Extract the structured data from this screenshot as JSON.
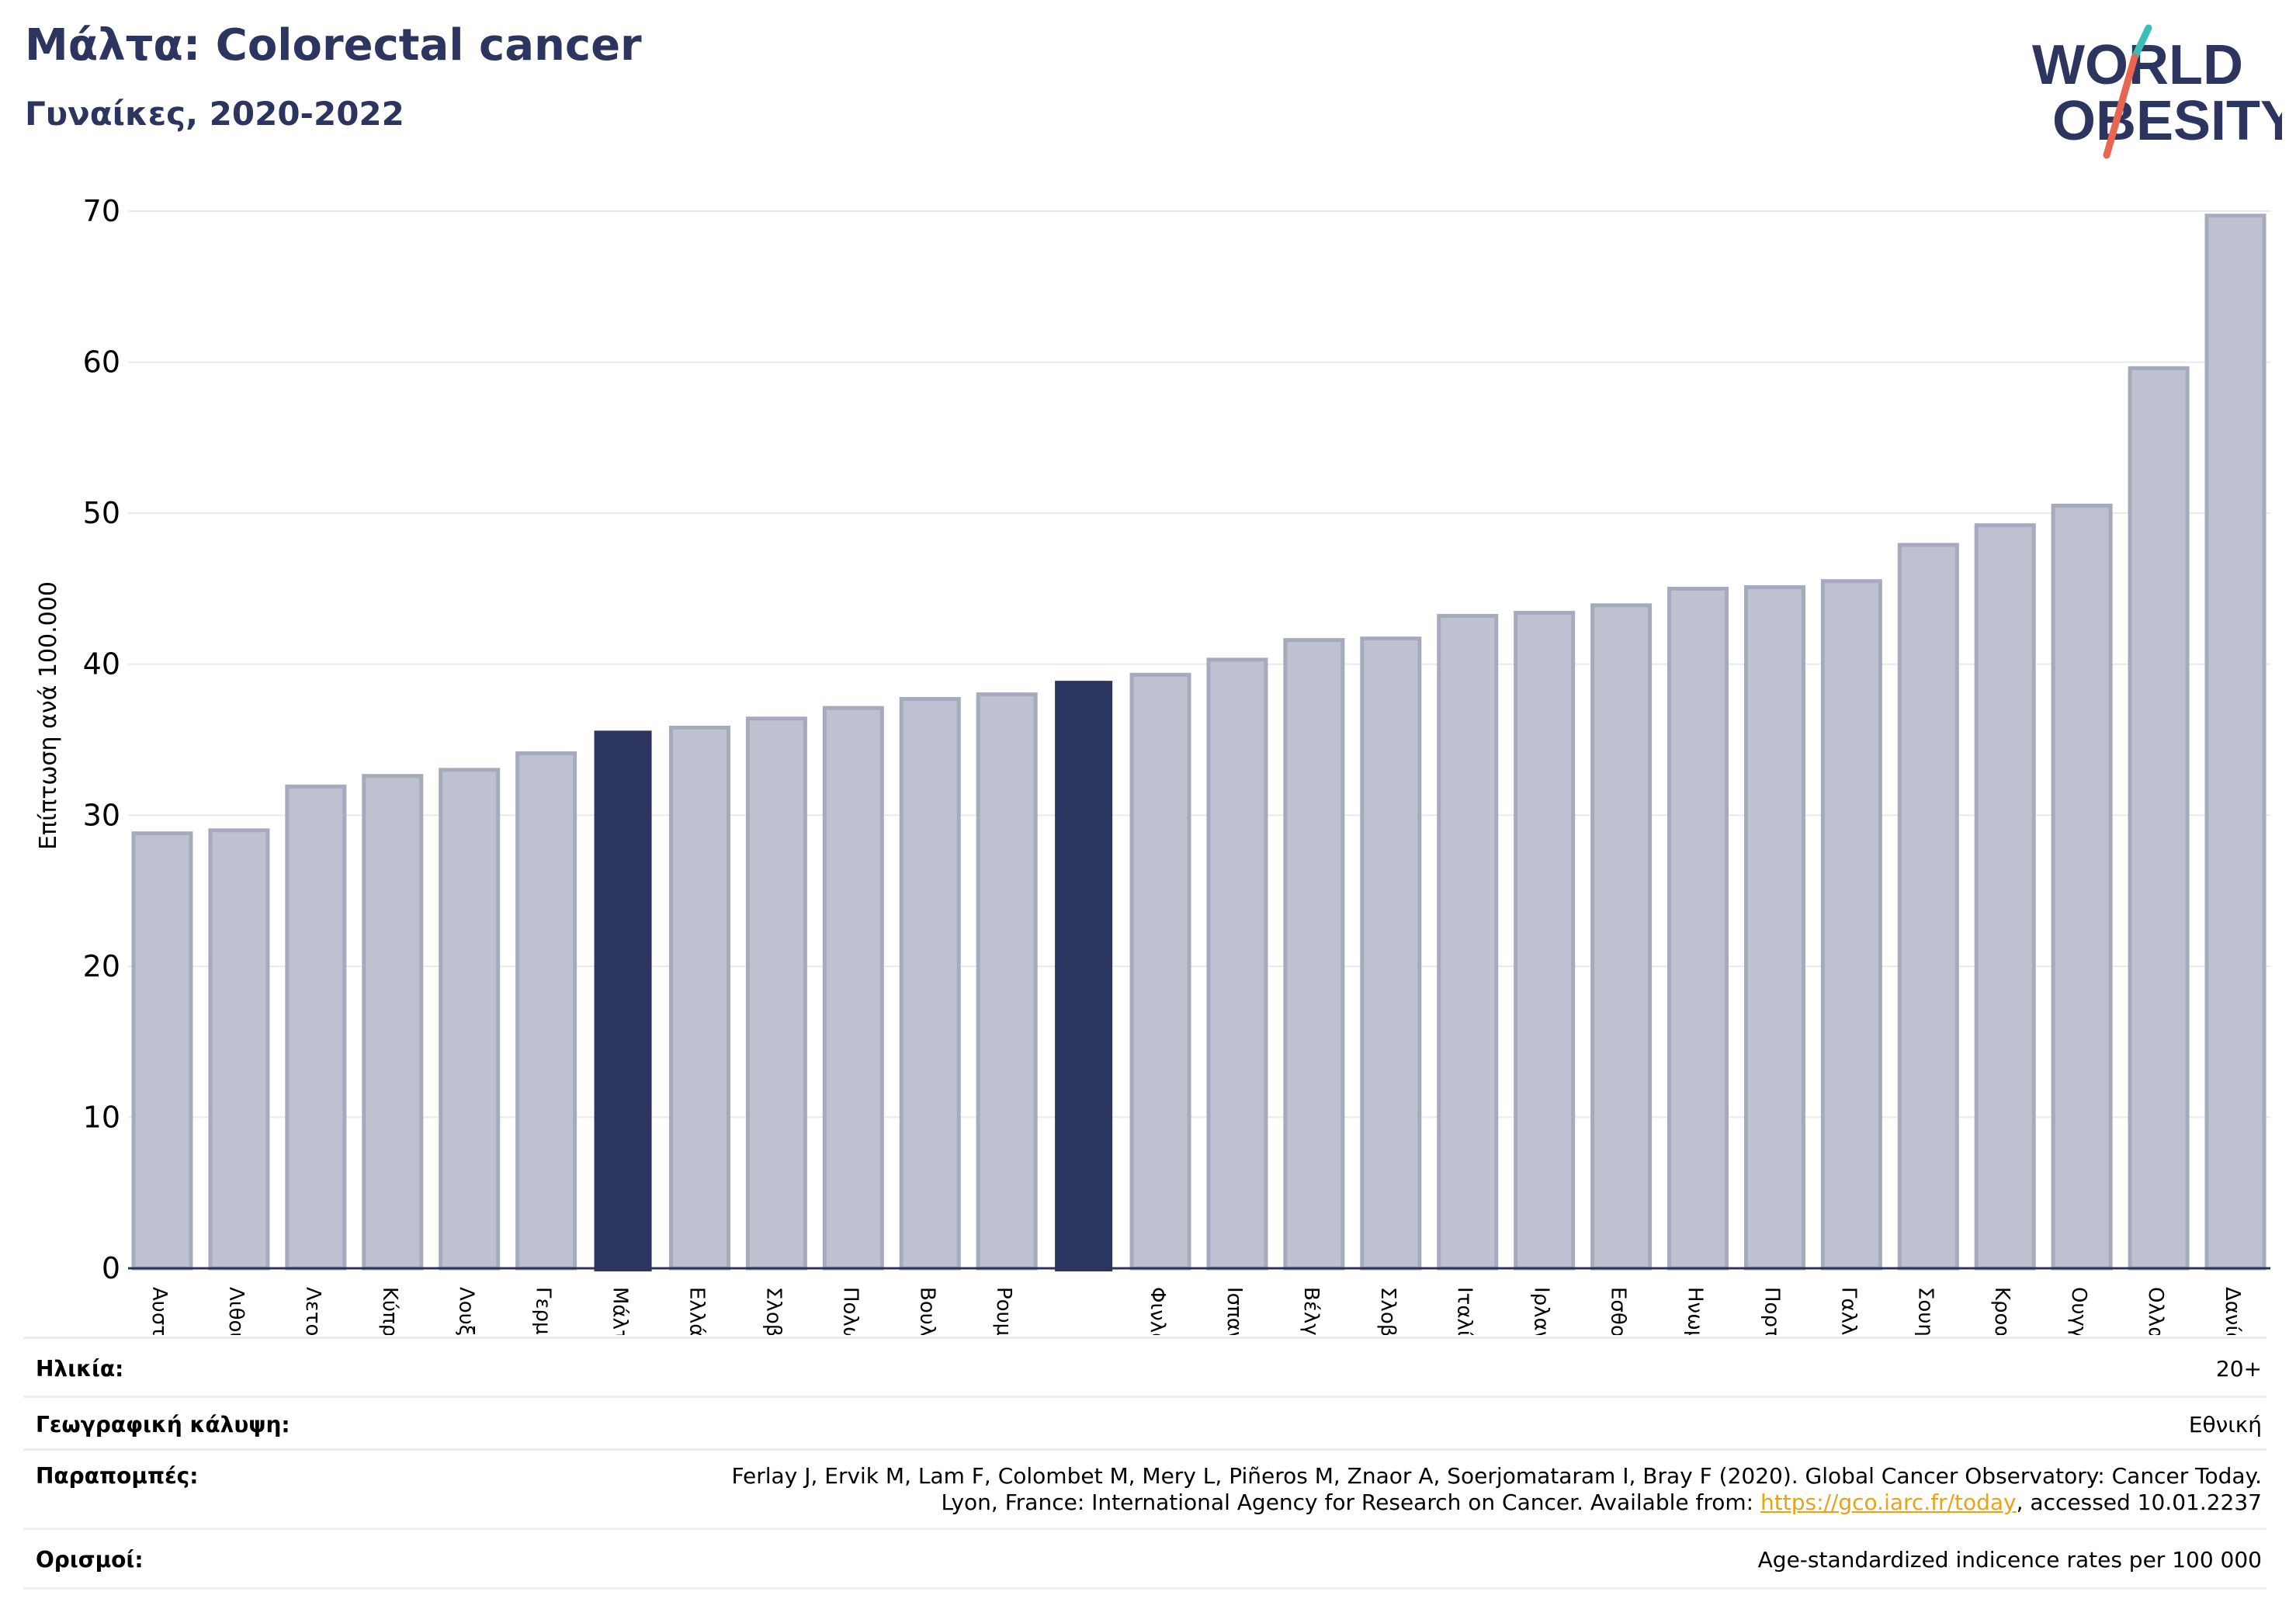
{
  "header": {
    "title": "Μάλτα: Colorectal cancer",
    "subtitle": "Γυναίκες, 2020-2022"
  },
  "logo": {
    "line1": "WORLD",
    "line2": "OBESITY",
    "accent_colors": [
      "#3bbfb5",
      "#e8664f"
    ],
    "text_color": "#2b3560"
  },
  "colors": {
    "bar": "#bec1cf",
    "bar_border": "#a6aabd",
    "highlight": "#2b3560",
    "grid": "#e8eaf0",
    "axis": "#2b3560"
  },
  "chart_data": {
    "type": "bar",
    "title": "Μάλτα: Colorectal cancer",
    "subtitle": "Γυναίκες, 2020-2022",
    "ylabel": "Επίπτωση ανά 100.000",
    "xlabel": "",
    "ylim": [
      0,
      70
    ],
    "yticks": [
      0,
      10,
      20,
      30,
      40,
      50,
      60,
      70
    ],
    "grid": true,
    "categories": [
      "Αυστρία",
      "Λιθουανία",
      "Λετονία",
      "Κύπρος",
      "Λουξεμβούργο",
      "Γερμανία",
      "Μάλτα",
      "Ελλάδα",
      "Σλοβενία",
      "Πολωνία",
      "Βουλγαρία",
      "Ρουμανία",
      "",
      "Φινλανδία",
      "Ισπανία",
      "Βέλγιο",
      "Σλοβακία",
      "Ιταλία",
      "Ιρλανδία",
      "Εσθονία",
      "Ηνωμένο Βασίλειο",
      "Πορτογαλία",
      "Γαλλία",
      "Σουηδία",
      "Κροατία",
      "Ουγγαρία",
      "Ολλανδία",
      "Δανία"
    ],
    "values": [
      28.8,
      29.0,
      31.9,
      32.6,
      33.0,
      34.1,
      35.6,
      35.8,
      36.4,
      37.1,
      37.7,
      38.0,
      38.9,
      39.3,
      40.3,
      41.6,
      41.7,
      43.2,
      43.4,
      43.9,
      45.0,
      45.1,
      45.5,
      47.9,
      49.2,
      50.5,
      59.6,
      69.7
    ],
    "highlighted": [
      6,
      12
    ]
  },
  "info": {
    "age_label": "Ηλικία:",
    "age_value": "20+",
    "coverage_label": "Γεωγραφική κάλυψη:",
    "coverage_value": "Εθνική",
    "refs_label": "Παραπομπές:",
    "refs_line1": "Ferlay J, Ervik M, Lam F, Colombet M, Mery L, Piñeros M, Znaor A, Soerjomataram I, Bray F (2020). Global Cancer Observatory: Cancer Today.",
    "refs_line2_pre": "Lyon, France: International Agency for Research on Cancer. Available from: ",
    "refs_link": "https://gco.iarc.fr/today",
    "refs_line2_post": ", accessed 10.01.2237",
    "defs_label": "Ορισμοί:",
    "defs_value": "Age-standardized indicence rates per 100 000"
  }
}
